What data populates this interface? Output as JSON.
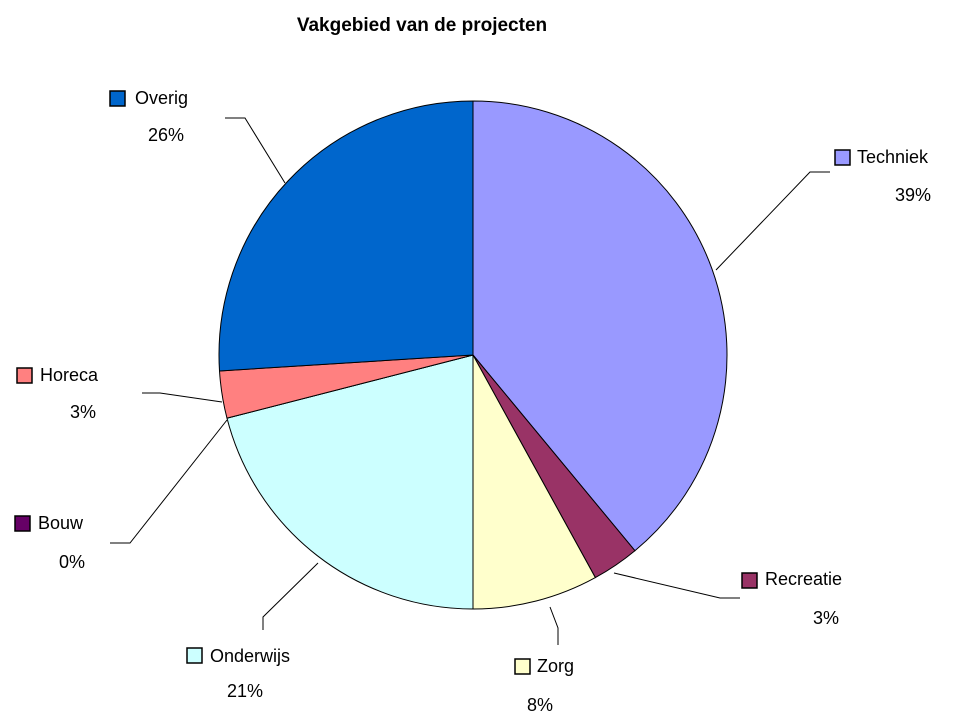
{
  "chart_data": {
    "type": "pie",
    "title": "Vakgebied van de projecten",
    "categories": [
      "Techniek",
      "Recreatie",
      "Zorg",
      "Onderwijs",
      "Bouw",
      "Horeca",
      "Overig"
    ],
    "values": [
      39,
      3,
      8,
      21,
      0,
      3,
      26
    ],
    "value_labels": [
      "39%",
      "3%",
      "8%",
      "21%",
      "0%",
      "3%",
      "26%"
    ],
    "colors": [
      "#9999ff",
      "#993366",
      "#ffffcc",
      "#ccffff",
      "#660066",
      "#ff8080",
      "#0066cc"
    ]
  }
}
